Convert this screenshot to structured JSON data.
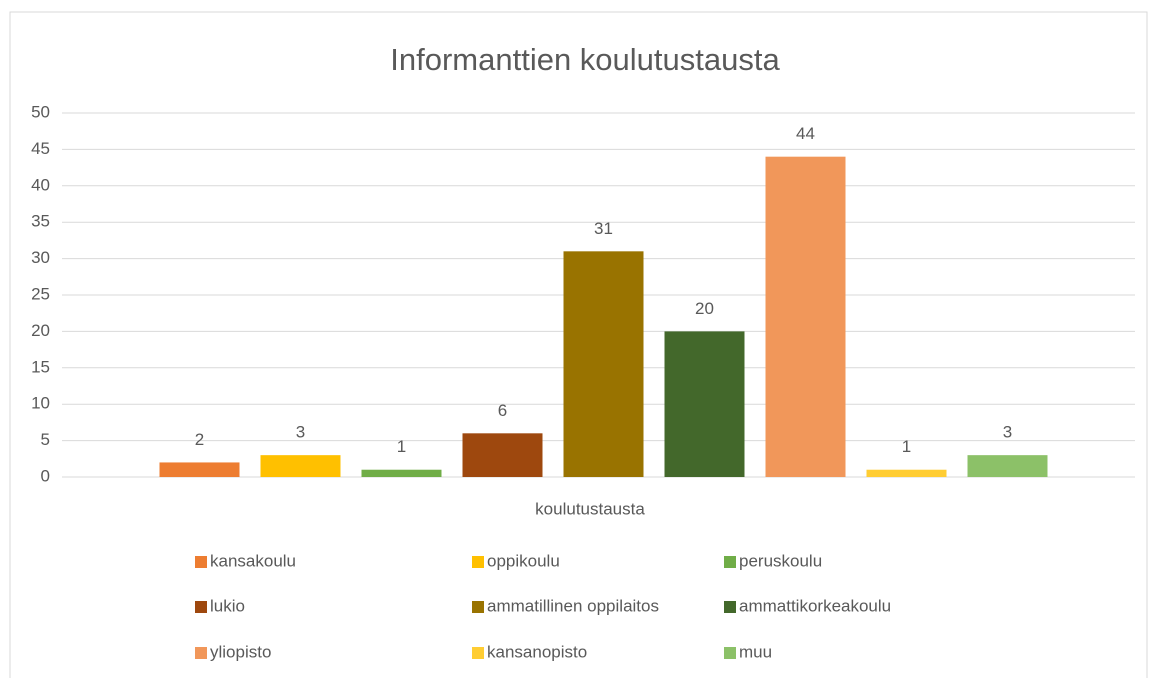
{
  "chart_data": {
    "type": "bar",
    "title": "Informanttien koulutustausta",
    "x_label": "koulutustausta",
    "categories": [
      "koulutustausta"
    ],
    "series": [
      {
        "name": "kansakoulu",
        "color": "#ED7D31",
        "values": [
          2
        ]
      },
      {
        "name": "oppikoulu",
        "color": "#FFC000",
        "values": [
          3
        ]
      },
      {
        "name": "peruskoulu",
        "color": "#70AD47",
        "values": [
          1
        ]
      },
      {
        "name": "lukio",
        "color": "#9E480E",
        "values": [
          6
        ]
      },
      {
        "name": "ammatillinen oppilaitos",
        "color": "#997300",
        "values": [
          31
        ]
      },
      {
        "name": "ammattikorkeakoulu",
        "color": "#43682B",
        "values": [
          20
        ]
      },
      {
        "name": "yliopisto",
        "color": "#F1975A",
        "values": [
          44
        ]
      },
      {
        "name": "kansanopisto",
        "color": "#FFCD33",
        "values": [
          1
        ]
      },
      {
        "name": "muu",
        "color": "#8CC168",
        "values": [
          3
        ]
      }
    ],
    "ylim": [
      0,
      50
    ],
    "yticks": [
      0,
      5,
      10,
      15,
      20,
      25,
      30,
      35,
      40,
      45,
      50
    ],
    "grid": true,
    "legend": "bottom"
  }
}
